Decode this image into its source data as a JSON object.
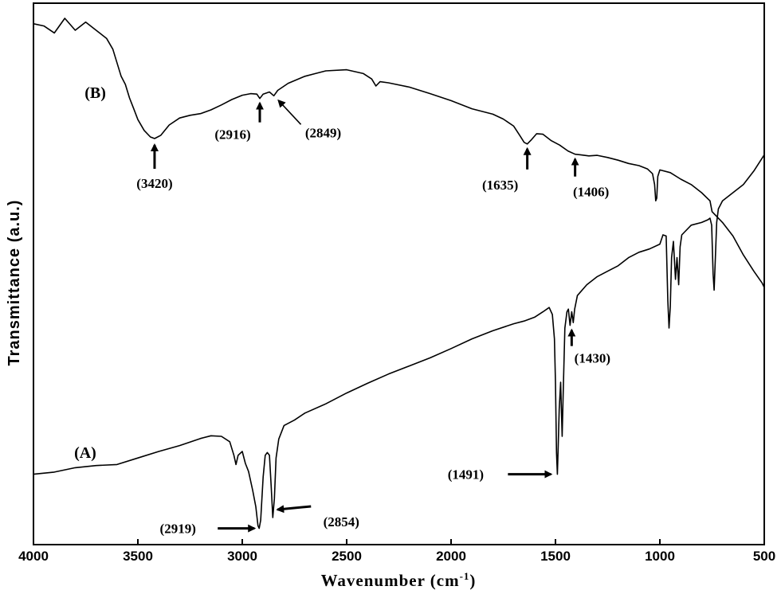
{
  "chart_data": {
    "type": "line",
    "xlabel": "Wavenumber (cm",
    "xlabel_sup": "-1",
    "xlabel_close": ")",
    "ylabel": "Transmittance (a.u.)",
    "xlim": [
      4000,
      500
    ],
    "ylim": [
      0,
      100
    ],
    "x_ticks": [
      4000,
      3500,
      3000,
      2500,
      2000,
      1500,
      1000,
      500
    ],
    "grid": false,
    "legend": "none",
    "series": [
      {
        "name": "(B)",
        "points": [
          [
            4000,
            96.2
          ],
          [
            3950,
            95.8
          ],
          [
            3900,
            94.5
          ],
          [
            3850,
            97.2
          ],
          [
            3800,
            95.0
          ],
          [
            3750,
            96.5
          ],
          [
            3700,
            95.0
          ],
          [
            3650,
            93.5
          ],
          [
            3620,
            91.5
          ],
          [
            3600,
            89.0
          ],
          [
            3580,
            86.5
          ],
          [
            3560,
            85.0
          ],
          [
            3540,
            82.5
          ],
          [
            3520,
            80.5
          ],
          [
            3500,
            78.5
          ],
          [
            3470,
            76.5
          ],
          [
            3440,
            75.3
          ],
          [
            3420,
            75.0
          ],
          [
            3390,
            75.6
          ],
          [
            3350,
            77.5
          ],
          [
            3300,
            78.8
          ],
          [
            3250,
            79.3
          ],
          [
            3200,
            79.6
          ],
          [
            3150,
            80.3
          ],
          [
            3100,
            81.2
          ],
          [
            3050,
            82.2
          ],
          [
            3000,
            83.0
          ],
          [
            2960,
            83.3
          ],
          [
            2930,
            83.2
          ],
          [
            2916,
            82.4
          ],
          [
            2900,
            83.2
          ],
          [
            2870,
            83.6
          ],
          [
            2849,
            82.9
          ],
          [
            2830,
            83.9
          ],
          [
            2780,
            85.2
          ],
          [
            2700,
            86.5
          ],
          [
            2650,
            87.0
          ],
          [
            2600,
            87.5
          ],
          [
            2500,
            87.7
          ],
          [
            2420,
            87.0
          ],
          [
            2380,
            86.0
          ],
          [
            2360,
            84.7
          ],
          [
            2340,
            85.5
          ],
          [
            2300,
            85.3
          ],
          [
            2200,
            84.5
          ],
          [
            2100,
            83.3
          ],
          [
            2000,
            82.0
          ],
          [
            1900,
            80.5
          ],
          [
            1800,
            79.5
          ],
          [
            1750,
            78.6
          ],
          [
            1700,
            77.3
          ],
          [
            1670,
            75.5
          ],
          [
            1650,
            74.3
          ],
          [
            1635,
            74.0
          ],
          [
            1615,
            74.8
          ],
          [
            1590,
            75.9
          ],
          [
            1560,
            75.8
          ],
          [
            1520,
            74.6
          ],
          [
            1480,
            73.8
          ],
          [
            1440,
            72.7
          ],
          [
            1406,
            72.1
          ],
          [
            1380,
            72.0
          ],
          [
            1340,
            71.8
          ],
          [
            1300,
            71.9
          ],
          [
            1250,
            71.5
          ],
          [
            1200,
            71.0
          ],
          [
            1150,
            70.4
          ],
          [
            1100,
            70.0
          ],
          [
            1060,
            69.4
          ],
          [
            1035,
            68.5
          ],
          [
            1025,
            66.5
          ],
          [
            1020,
            63.5
          ],
          [
            1015,
            64.0
          ],
          [
            1010,
            68.0
          ],
          [
            1000,
            69.2
          ],
          [
            950,
            68.7
          ],
          [
            900,
            67.5
          ],
          [
            850,
            66.5
          ],
          [
            800,
            65.0
          ],
          [
            760,
            63.5
          ],
          [
            750,
            61.5
          ],
          [
            700,
            59.5
          ],
          [
            650,
            57.0
          ],
          [
            600,
            53.5
          ],
          [
            550,
            50.5
          ],
          [
            510,
            48.3
          ],
          [
            500,
            47.5
          ]
        ]
      },
      {
        "name": "(A)",
        "points": [
          [
            4000,
            13.0
          ],
          [
            3900,
            13.4
          ],
          [
            3800,
            14.2
          ],
          [
            3700,
            14.6
          ],
          [
            3600,
            14.8
          ],
          [
            3500,
            16.0
          ],
          [
            3400,
            17.2
          ],
          [
            3300,
            18.3
          ],
          [
            3200,
            19.6
          ],
          [
            3150,
            20.1
          ],
          [
            3100,
            20.0
          ],
          [
            3060,
            19.0
          ],
          [
            3040,
            16.5
          ],
          [
            3030,
            14.8
          ],
          [
            3020,
            16.5
          ],
          [
            3000,
            17.2
          ],
          [
            2985,
            15.0
          ],
          [
            2970,
            13.5
          ],
          [
            2950,
            10.0
          ],
          [
            2935,
            7.0
          ],
          [
            2925,
            3.5
          ],
          [
            2919,
            3.0
          ],
          [
            2912,
            4.5
          ],
          [
            2900,
            12.5
          ],
          [
            2890,
            16.5
          ],
          [
            2880,
            17.0
          ],
          [
            2870,
            16.5
          ],
          [
            2862,
            11.0
          ],
          [
            2854,
            5.0
          ],
          [
            2846,
            8.5
          ],
          [
            2838,
            16.0
          ],
          [
            2825,
            19.5
          ],
          [
            2800,
            22.0
          ],
          [
            2750,
            23.0
          ],
          [
            2700,
            24.3
          ],
          [
            2600,
            26.0
          ],
          [
            2500,
            28.0
          ],
          [
            2400,
            29.8
          ],
          [
            2300,
            31.5
          ],
          [
            2200,
            33.0
          ],
          [
            2100,
            34.5
          ],
          [
            2000,
            36.2
          ],
          [
            1900,
            38.0
          ],
          [
            1800,
            39.5
          ],
          [
            1700,
            40.8
          ],
          [
            1650,
            41.3
          ],
          [
            1600,
            42.0
          ],
          [
            1560,
            43.0
          ],
          [
            1530,
            43.8
          ],
          [
            1515,
            42.5
          ],
          [
            1505,
            38.0
          ],
          [
            1500,
            30.0
          ],
          [
            1495,
            17.0
          ],
          [
            1491,
            13.0
          ],
          [
            1487,
            18.0
          ],
          [
            1482,
            25.0
          ],
          [
            1475,
            30.0
          ],
          [
            1468,
            20.0
          ],
          [
            1463,
            28.0
          ],
          [
            1455,
            40.0
          ],
          [
            1445,
            43.0
          ],
          [
            1438,
            43.5
          ],
          [
            1430,
            40.5
          ],
          [
            1422,
            43.0
          ],
          [
            1415,
            41.0
          ],
          [
            1408,
            43.5
          ],
          [
            1395,
            46.0
          ],
          [
            1350,
            48.0
          ],
          [
            1300,
            49.5
          ],
          [
            1250,
            50.5
          ],
          [
            1200,
            51.5
          ],
          [
            1150,
            53.0
          ],
          [
            1100,
            54.0
          ],
          [
            1050,
            54.6
          ],
          [
            1000,
            55.5
          ],
          [
            985,
            57.2
          ],
          [
            970,
            57.0
          ],
          [
            962,
            45.0
          ],
          [
            956,
            40.0
          ],
          [
            950,
            44.0
          ],
          [
            944,
            53.0
          ],
          [
            935,
            56.0
          ],
          [
            925,
            49.0
          ],
          [
            918,
            53.0
          ],
          [
            910,
            48.0
          ],
          [
            903,
            55.0
          ],
          [
            895,
            57.2
          ],
          [
            850,
            59.0
          ],
          [
            800,
            59.5
          ],
          [
            770,
            60.0
          ],
          [
            760,
            60.3
          ],
          [
            752,
            59.0
          ],
          [
            745,
            50.0
          ],
          [
            740,
            47.0
          ],
          [
            735,
            52.0
          ],
          [
            728,
            59.5
          ],
          [
            720,
            62.0
          ],
          [
            700,
            63.5
          ],
          [
            650,
            65.0
          ],
          [
            600,
            66.5
          ],
          [
            550,
            69.0
          ],
          [
            500,
            72.0
          ]
        ]
      }
    ],
    "labels": [
      {
        "text": "(B)",
        "x": 3755,
        "y": 82.5
      },
      {
        "text": "(A)",
        "x": 3805,
        "y": 16.0
      }
    ],
    "annotations": [
      {
        "text": "(3420)",
        "x": 3420,
        "y": 75.0
      },
      {
        "text": "(2916)",
        "x": 2916,
        "y": 82.4
      },
      {
        "text": "(2849)",
        "x": 2849,
        "y": 82.9
      },
      {
        "text": "(1635)",
        "x": 1635,
        "y": 74.0
      },
      {
        "text": "(1406)",
        "x": 1406,
        "y": 72.1
      },
      {
        "text": "(2919)",
        "x": 2919,
        "y": 3.0
      },
      {
        "text": "(2854)",
        "x": 2854,
        "y": 5.0
      },
      {
        "text": "(1491)",
        "x": 1491,
        "y": 13.0
      },
      {
        "text": "(1430)",
        "x": 1430,
        "y": 40.5
      }
    ]
  }
}
